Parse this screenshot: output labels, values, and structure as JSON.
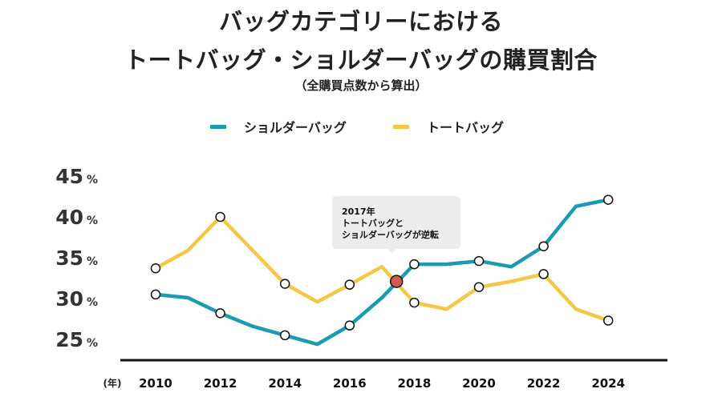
{
  "chart_data": {
    "type": "line",
    "title": [
      "バッグカテゴリーにおける",
      "トートバッグ・ショルダーバッグの購買割合"
    ],
    "subtitle": "（全購買点数から算出）",
    "xlabel": "(年)",
    "ylabel": "",
    "x": [
      2010,
      2011,
      2012,
      2013,
      2014,
      2015,
      2016,
      2017,
      2018,
      2019,
      2020,
      2021,
      2022,
      2023,
      2024
    ],
    "x_tick_labels": [
      "2010",
      "2012",
      "2014",
      "2016",
      "2018",
      "2020",
      "2022",
      "2024"
    ],
    "y_tick_labels": [
      {
        "value": 45,
        "num": "45",
        "unit": "%"
      },
      {
        "value": 40,
        "num": "40",
        "unit": "%"
      },
      {
        "value": 35,
        "num": "35",
        "unit": "%"
      },
      {
        "value": 30,
        "num": "30",
        "unit": "%"
      },
      {
        "value": 25,
        "num": "25",
        "unit": "%"
      }
    ],
    "ylim": [
      22.5,
      45
    ],
    "xlim": [
      2009,
      2025.8
    ],
    "grid": false,
    "legend_position": "top",
    "marker_years": [
      2010,
      2012,
      2014,
      2016,
      2018,
      2020,
      2022,
      2024
    ],
    "series": [
      {
        "name": "ショルダーバッグ",
        "color": "#1a9bb2",
        "values": [
          30.5,
          30.1,
          28.2,
          26.6,
          25.5,
          24.4,
          26.7,
          30.1,
          34.2,
          34.2,
          34.6,
          33.9,
          36.4,
          41.3,
          42.1
        ]
      },
      {
        "name": "トートバッグ",
        "color": "#f5c744",
        "values": [
          33.7,
          35.9,
          40.0,
          35.9,
          31.8,
          29.6,
          31.7,
          33.9,
          29.5,
          28.7,
          31.4,
          32.1,
          33.0,
          28.7,
          27.3
        ]
      }
    ],
    "annotation": {
      "x": 2017.45,
      "y": 32.1,
      "marker_color": "#d25a4f",
      "lines": [
        "2017年",
        "トートバッグと",
        "ショルダーバッグが逆転"
      ]
    }
  }
}
